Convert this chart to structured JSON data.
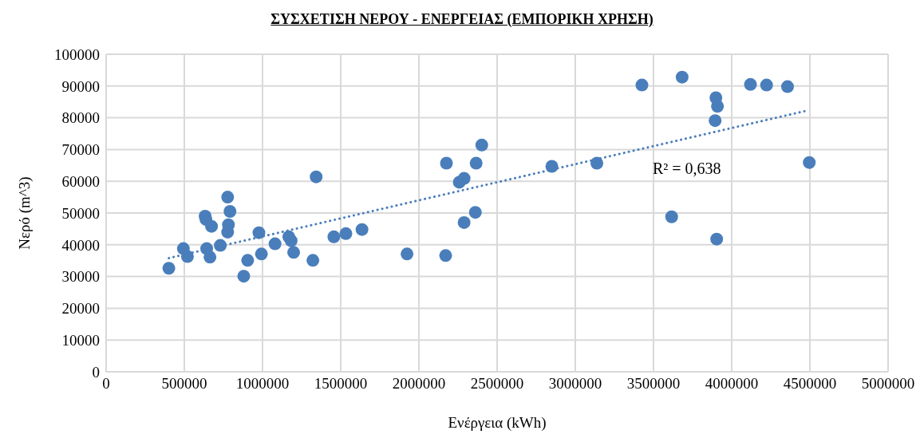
{
  "chart_data": {
    "type": "scatter",
    "title": "ΣΥΣΧΕΤΙΣΗ ΝΕΡΟΥ - ΕΝΕΡΓΕΙΑΣ (ΕΜΠΟΡΙΚΗ ΧΡΗΣΗ)",
    "xlabel": "Ενέργεια (kWh)",
    "ylabel": "Νερό (m^3)",
    "series": [
      {
        "type": "scatter",
        "color": "#4a7ebb",
        "marker": "circle",
        "x": [
          401000,
          494000,
          520000,
          633000,
          638000,
          643000,
          664000,
          674000,
          730000,
          777000,
          792000,
          782000,
          777000,
          880000,
          905000,
          977000,
          993000,
          1080000,
          1168000,
          1183000,
          1199000,
          1322000,
          1343000,
          1456000,
          1533000,
          1636000,
          1924000,
          2171000,
          2176000,
          2258000,
          2289000,
          2289000,
          2361000,
          2366000,
          2402000,
          2850000,
          3138000,
          3426000,
          3683000,
          3616000,
          3894000,
          3899000,
          3909000,
          3904000,
          4120000,
          4223000,
          4357000,
          4496000
        ],
        "values": [
          32600,
          38800,
          36300,
          49000,
          48000,
          38800,
          36100,
          45800,
          39800,
          55000,
          50500,
          46300,
          44000,
          30100,
          35100,
          43800,
          37100,
          40300,
          42500,
          41300,
          37600,
          35100,
          61400,
          42500,
          43500,
          44800,
          37100,
          36600,
          65700,
          59700,
          60900,
          47000,
          50200,
          65700,
          71400,
          64700,
          65700,
          90300,
          92800,
          48800,
          79100,
          86300,
          83600,
          41800,
          90500,
          90300,
          89800,
          65900
        ]
      },
      {
        "type": "line",
        "color": "#4a7ebb",
        "marker": "none",
        "line_style": "dotted",
        "x": [
          401000,
          4486000
        ],
        "values": [
          35800,
          82300
        ]
      }
    ],
    "annotations": [
      "R² = 0,638"
    ],
    "xlim": [
      0,
      5000000
    ],
    "xticks": [
      0,
      500000,
      1000000,
      1500000,
      2000000,
      2500000,
      3000000,
      3500000,
      4000000,
      4500000,
      5000000
    ],
    "ylim": [
      0,
      100000
    ],
    "yticks": [
      0,
      10000,
      20000,
      30000,
      40000,
      50000,
      60000,
      70000,
      80000,
      90000,
      100000
    ],
    "grid": true
  }
}
